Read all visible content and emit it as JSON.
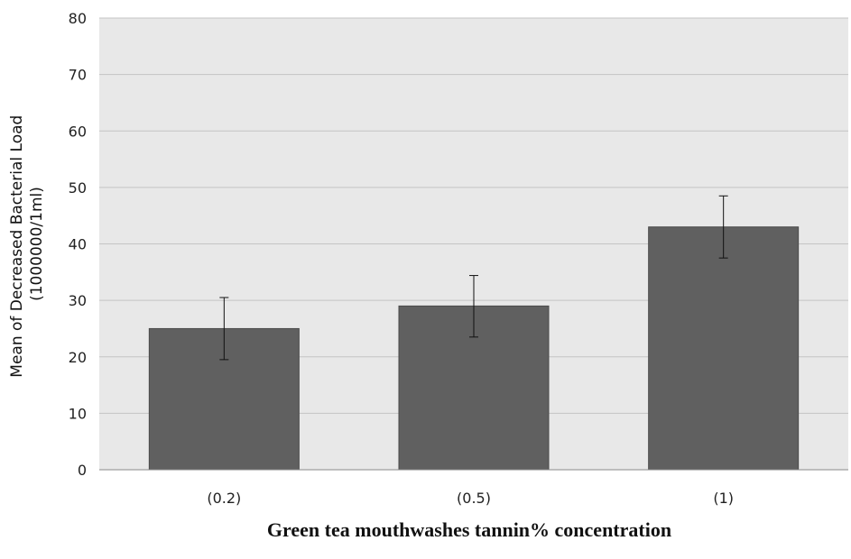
{
  "chart_data": {
    "type": "bar",
    "title": "",
    "xlabel": "Green tea mouthwashes tannin% concentration",
    "ylabel_lines": [
      "Mean of Decreased  Bacterial Load",
      "(1000000/1ml)"
    ],
    "categories": [
      "(0.2)",
      "(0.5)",
      "(1)"
    ],
    "values": [
      25,
      29,
      43
    ],
    "error_low": [
      19.5,
      23.5,
      37.5
    ],
    "error_high": [
      30.5,
      34.4,
      48.5
    ],
    "ylim": [
      0,
      80
    ],
    "yticks": [
      0,
      10,
      20,
      30,
      40,
      50,
      60,
      70,
      80
    ],
    "grid": true,
    "legend": "none",
    "colors": {
      "bar": "#606060",
      "bar_edge": "#4a4a4a",
      "plot_background": "#e8e8e8",
      "gridline": "#c4c4c4",
      "error_bar": "#111111",
      "axis": "#8a8a8a"
    }
  }
}
